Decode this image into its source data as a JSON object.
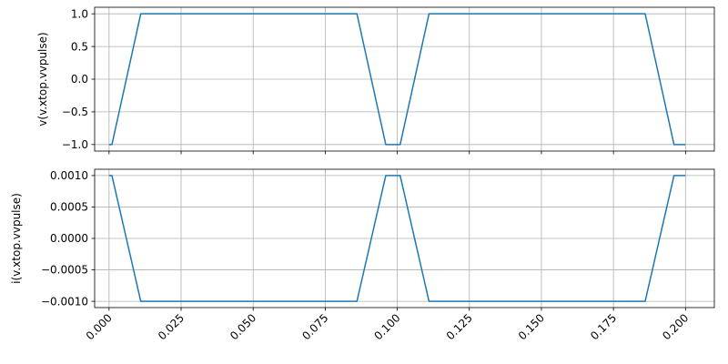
{
  "chart_data": [
    {
      "type": "line",
      "ylabel": "v(v.xtop.vvpulse)",
      "xlim": [
        -0.005,
        0.21
      ],
      "ylim": [
        -1.1,
        1.1
      ],
      "grid": true,
      "line_color": "#1f77b4",
      "yticks": [
        -1.0,
        -0.5,
        0.0,
        0.5,
        1.0
      ],
      "ytick_labels": [
        "−1.0",
        "−0.5",
        "0.0",
        "0.5",
        "1.0"
      ],
      "x": [
        0.0,
        0.001,
        0.011,
        0.086,
        0.096,
        0.101,
        0.111,
        0.186,
        0.196,
        0.2
      ],
      "y": [
        -1,
        -1,
        1,
        1,
        -1,
        -1,
        1,
        1,
        -1,
        -1
      ]
    },
    {
      "type": "line",
      "ylabel": "i(v.xtop.vvpulse)",
      "xlim": [
        -0.005,
        0.21
      ],
      "ylim": [
        -0.0011,
        0.0011
      ],
      "grid": true,
      "line_color": "#1f77b4",
      "yticks": [
        -0.001,
        -0.0005,
        0.0,
        0.0005,
        0.001
      ],
      "ytick_labels": [
        "−0.0010",
        "−0.0005",
        "0.0000",
        "0.0005",
        "0.0010"
      ],
      "xticks": [
        0.0,
        0.025,
        0.05,
        0.075,
        0.1,
        0.125,
        0.15,
        0.175,
        0.2
      ],
      "xtick_labels": [
        "0.000",
        "0.025",
        "0.050",
        "0.075",
        "0.100",
        "0.125",
        "0.150",
        "0.175",
        "0.200"
      ],
      "x": [
        0.0,
        0.001,
        0.011,
        0.086,
        0.096,
        0.101,
        0.111,
        0.186,
        0.196,
        0.2
      ],
      "y": [
        0.001,
        0.001,
        -0.001,
        -0.001,
        0.001,
        0.001,
        -0.001,
        -0.001,
        0.001,
        0.001
      ]
    }
  ]
}
